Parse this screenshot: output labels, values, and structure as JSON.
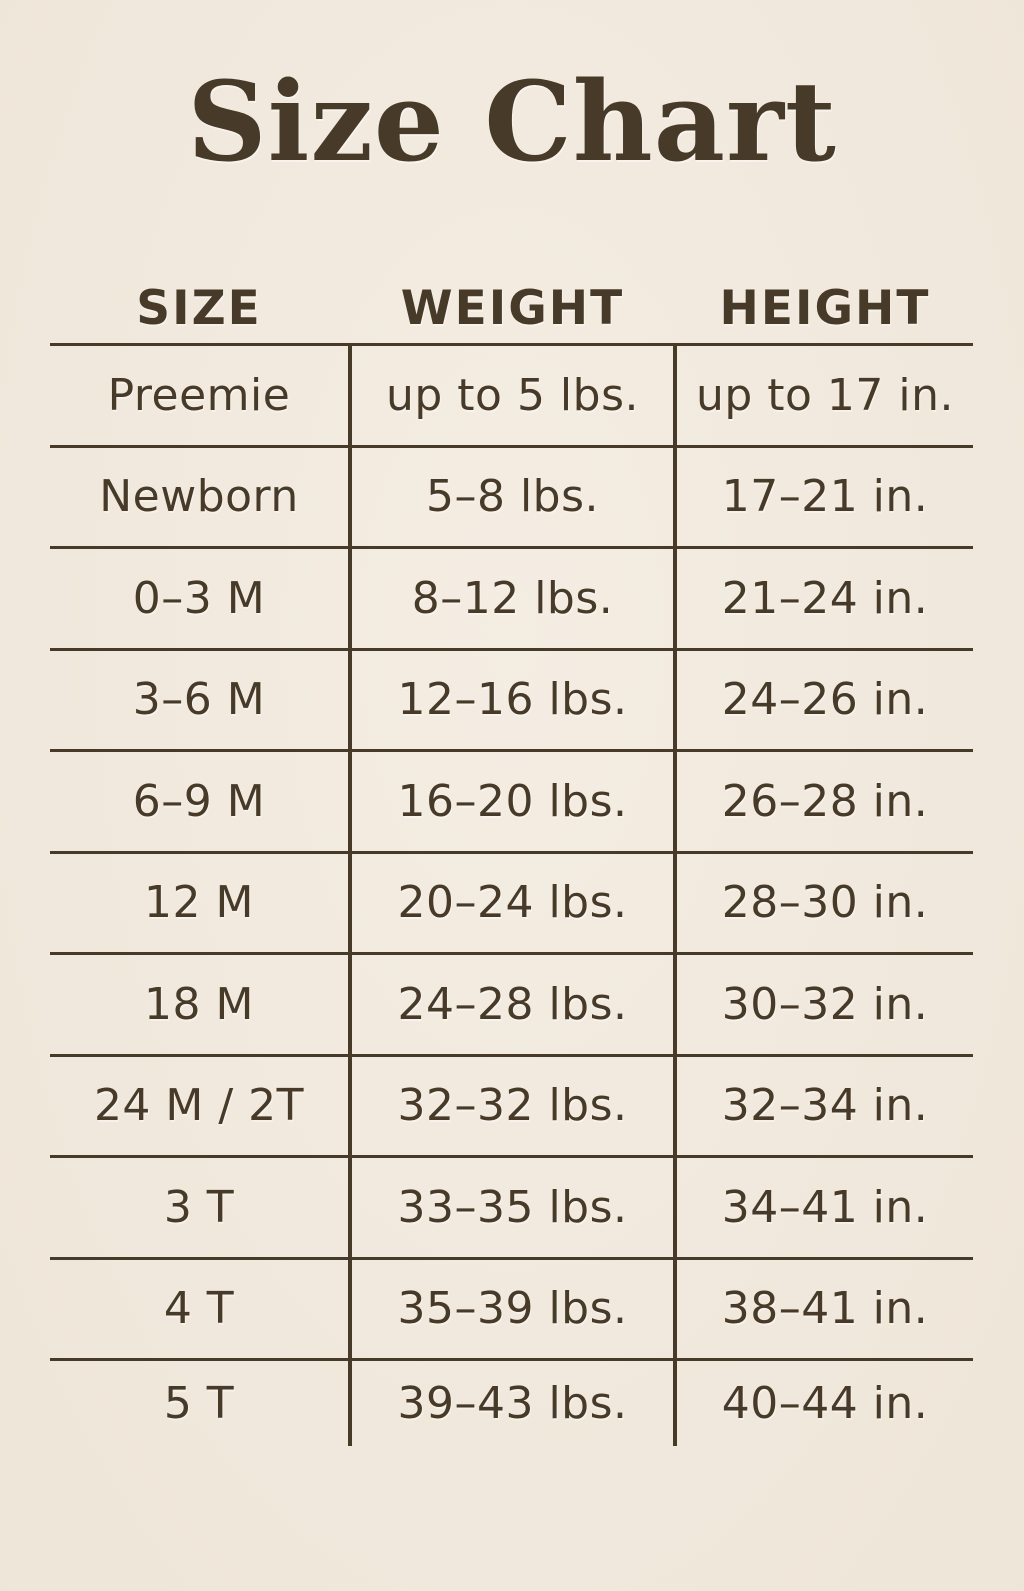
{
  "title": "Size Chart",
  "colors": {
    "background": "#f2e9dc",
    "text": "#473a29",
    "line": "#473a29"
  },
  "chart_data": {
    "type": "table",
    "title": "Size Chart",
    "columns": [
      "SIZE",
      "WEIGHT",
      "HEIGHT"
    ],
    "rows": [
      {
        "size": "Preemie",
        "weight": "up to 5 lbs.",
        "height": "up to 17 in."
      },
      {
        "size": "Newborn",
        "weight": "5–8 lbs.",
        "height": "17–21 in."
      },
      {
        "size": "0–3 M",
        "weight": "8–12 lbs.",
        "height": "21–24 in."
      },
      {
        "size": "3–6 M",
        "weight": "12–16 lbs.",
        "height": "24–26 in."
      },
      {
        "size": "6–9 M",
        "weight": "16–20 lbs.",
        "height": "26–28 in."
      },
      {
        "size": "12 M",
        "weight": "20–24 lbs.",
        "height": "28–30 in."
      },
      {
        "size": "18 M",
        "weight": "24–28 lbs.",
        "height": "30–32 in."
      },
      {
        "size": "24 M / 2T",
        "weight": "32–32 lbs.",
        "height": "32–34 in."
      },
      {
        "size": "3 T",
        "weight": "33–35 lbs.",
        "height": "34–41 in."
      },
      {
        "size": "4 T",
        "weight": "35–39 lbs.",
        "height": "38–41 in."
      },
      {
        "size": "5 T",
        "weight": "39–43 lbs.",
        "height": "40–44 in."
      }
    ]
  }
}
